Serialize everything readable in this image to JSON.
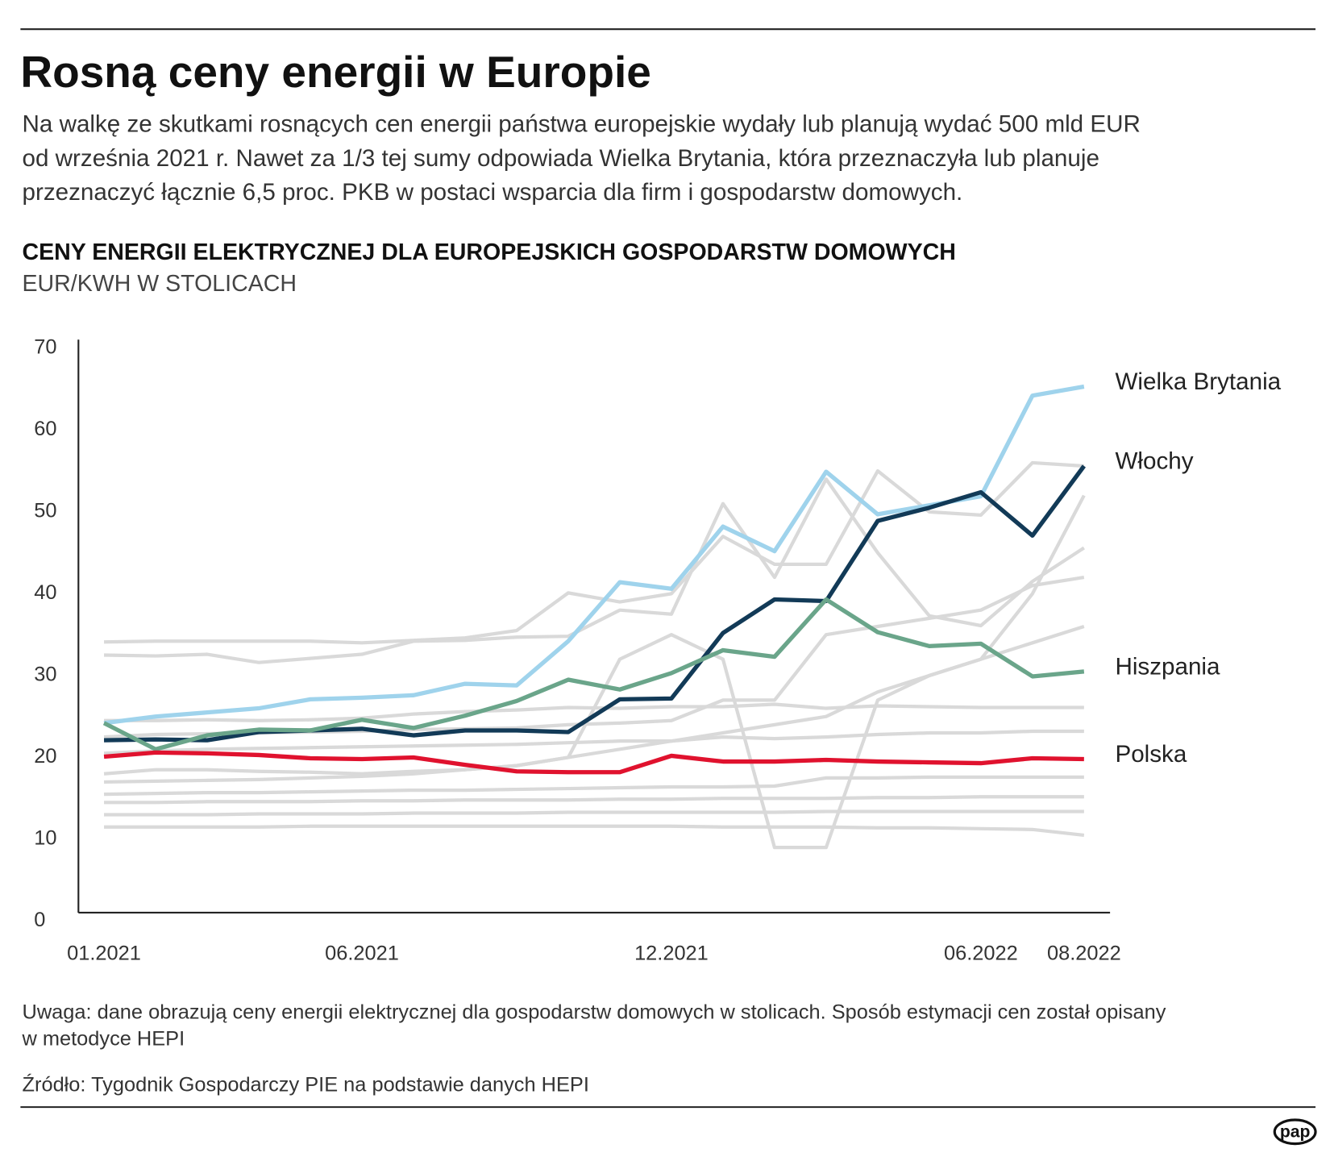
{
  "chart_data": {
    "type": "line",
    "title": "Rosną ceny energii w Europie",
    "subtitle": [
      "Na walkę ze skutkami rosnących cen energii państwa europejskie wydały lub planują wydać 500 mld EUR",
      "od września 2021 r. Nawet za 1/3 tej sumy odpowiada Wielka Brytania, która przeznaczyła lub planuje",
      "przeznaczyć łącznie 6,5 proc. PKB w postaci wsparcia dla firm i gospodarstw domowych."
    ],
    "chart_title": "CENY ENERGII ELEKTRYCZNEJ DLA EUROPEJSKICH GOSPODARSTW DOMOWYCH",
    "y_label": "EUR/KWH W STOLICACH",
    "categories": [
      "01.2021",
      null,
      null,
      null,
      null,
      "06.2021",
      null,
      null,
      null,
      null,
      null,
      "12.2021",
      null,
      null,
      null,
      null,
      null,
      "06.2022",
      null,
      "08.2022"
    ],
    "ylim": [
      0,
      70
    ],
    "yticks": [
      0,
      10,
      20,
      30,
      40,
      50,
      60,
      70
    ],
    "grid": false,
    "series": [
      {
        "color": "#d9d9d9",
        "values": [
          34.1,
          34.2,
          34.2,
          34.2,
          34.2,
          34.0,
          34.3,
          34.6,
          35.5,
          40.1,
          39.0,
          40.0,
          47.0,
          43.6,
          43.6,
          55.0,
          50.0,
          49.6,
          56.0,
          55.6
        ]
      },
      {
        "color": "#d9d9d9",
        "values": [
          32.5,
          32.4,
          32.6,
          31.6,
          32.1,
          32.6,
          34.2,
          34.3,
          34.7,
          34.8,
          38.0,
          37.5,
          51.0,
          42.0,
          54.0,
          45.0,
          37.3,
          36.1,
          41.5,
          45.6
        ]
      },
      {
        "color": "#d9d9d9",
        "values": [
          24.5,
          24.5,
          24.6,
          24.5,
          24.6,
          24.8,
          25.3,
          25.6,
          25.8,
          26.1,
          26.0,
          26.2,
          26.2,
          26.5,
          26.0,
          26.3,
          26.2,
          26.1,
          26.1,
          26.1
        ]
      },
      {
        "color": "#d9d9d9",
        "values": [
          18.0,
          18.5,
          18.5,
          18.3,
          18.2,
          18.0,
          18.3,
          18.5,
          19.0,
          20.0,
          32.0,
          35.0,
          32.0,
          9.0,
          9.0,
          27.0,
          30.0,
          32.0,
          40.0,
          52.0
        ]
      },
      {
        "color": "#d9d9d9",
        "values": [
          15.5,
          15.6,
          15.7,
          15.7,
          15.8,
          15.9,
          16.0,
          16.0,
          16.1,
          16.2,
          16.3,
          16.4,
          16.4,
          16.5,
          17.5,
          17.5,
          17.6,
          17.6,
          17.6,
          17.6
        ]
      },
      {
        "color": "#d9d9d9",
        "values": [
          13.0,
          13.0,
          13.0,
          13.1,
          13.1,
          13.1,
          13.2,
          13.2,
          13.2,
          13.3,
          13.3,
          13.3,
          13.3,
          13.3,
          13.4,
          13.4,
          13.4,
          13.4,
          13.4,
          13.4
        ]
      },
      {
        "color": "#d9d9d9",
        "values": [
          11.5,
          11.5,
          11.5,
          11.5,
          11.6,
          11.6,
          11.6,
          11.6,
          11.6,
          11.6,
          11.6,
          11.6,
          11.5,
          11.5,
          11.5,
          11.4,
          11.4,
          11.3,
          11.2,
          10.5
        ]
      },
      {
        "color": "#d9d9d9",
        "values": [
          22.5,
          22.8,
          22.9,
          23.0,
          23.1,
          23.2,
          23.4,
          23.5,
          23.6,
          24.0,
          24.2,
          24.5,
          27.0,
          27.0,
          35.0,
          36.0,
          37.0,
          38.0,
          41.0,
          42.0
        ]
      },
      {
        "color": "#d9d9d9",
        "values": [
          17.0,
          17.1,
          17.2,
          17.3,
          17.5,
          17.7,
          18.0,
          18.5,
          19.0,
          20.0,
          21.0,
          22.0,
          23.0,
          24.0,
          25.0,
          28.0,
          30.0,
          32.0,
          34.0,
          36.0
        ]
      },
      {
        "color": "#d9d9d9",
        "values": [
          20.5,
          20.8,
          21.0,
          21.1,
          21.2,
          21.3,
          21.4,
          21.5,
          21.6,
          21.8,
          22.0,
          22.0,
          22.5,
          22.3,
          22.5,
          22.8,
          23.0,
          23.0,
          23.2,
          23.2
        ]
      },
      {
        "color": "#d9d9d9",
        "values": [
          14.5,
          14.5,
          14.6,
          14.6,
          14.6,
          14.7,
          14.7,
          14.8,
          14.8,
          14.8,
          14.9,
          14.9,
          15.0,
          15.0,
          15.0,
          15.1,
          15.1,
          15.2,
          15.2,
          15.2
        ]
      },
      {
        "name": "Wielka Brytania",
        "color": "#9fd3ec",
        "values": [
          24.2,
          25.0,
          25.5,
          26.0,
          27.1,
          27.3,
          27.6,
          29.0,
          28.8,
          34.2,
          41.4,
          40.6,
          48.2,
          45.2,
          54.9,
          49.7,
          50.8,
          51.9,
          64.2,
          65.3
        ]
      },
      {
        "name": "Włochy",
        "color": "#123a57",
        "values": [
          22.1,
          22.2,
          22.1,
          23.1,
          23.3,
          23.5,
          22.7,
          23.3,
          23.3,
          23.1,
          27.1,
          27.2,
          35.2,
          39.3,
          39.1,
          48.9,
          50.5,
          52.4,
          47.1,
          55.6
        ]
      },
      {
        "name": "Hiszpania",
        "color": "#6aa58a",
        "values": [
          24.2,
          21.0,
          22.7,
          23.4,
          23.3,
          24.6,
          23.6,
          25.1,
          26.9,
          29.5,
          28.3,
          30.3,
          33.1,
          32.3,
          39.3,
          35.3,
          33.6,
          33.9,
          29.9,
          30.5
        ]
      },
      {
        "name": "Polska",
        "color": "#e0122e",
        "values": [
          20.1,
          20.6,
          20.5,
          20.3,
          19.9,
          19.8,
          20.0,
          19.1,
          18.3,
          18.2,
          18.2,
          20.2,
          19.5,
          19.5,
          19.7,
          19.5,
          19.4,
          19.3,
          19.9,
          19.8
        ]
      }
    ],
    "note": [
      "Uwaga: dane obrazują ceny energii elektrycznej dla gospodarstw domowych w stolicach. Sposób estymacji cen został opisany",
      "w metodyce HEPI"
    ],
    "source": "Źródło: Tygodnik Gospodarczy PIE na podstawie danych HEPI",
    "logo": "pap"
  }
}
